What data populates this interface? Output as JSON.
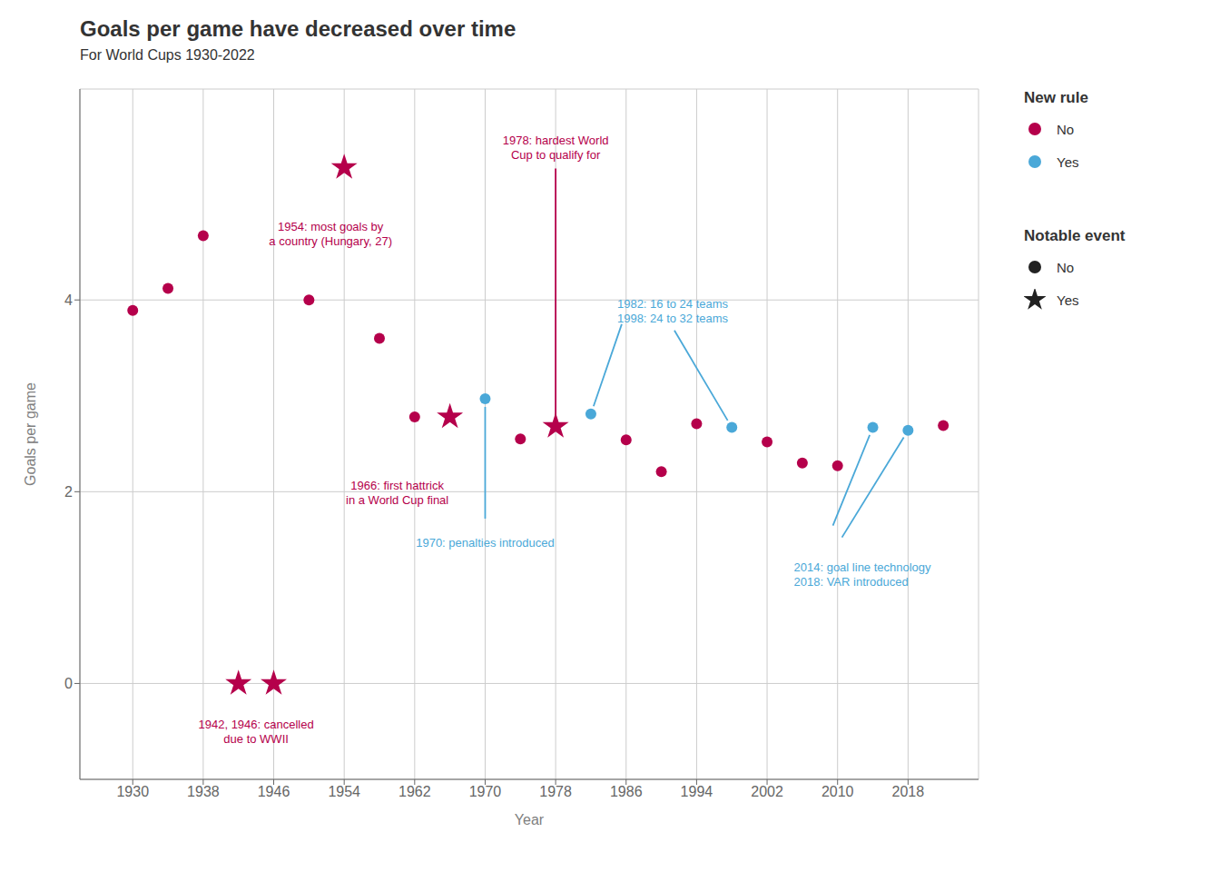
{
  "chart_data": {
    "type": "scatter",
    "title": "Goals per game have decreased over time",
    "subtitle": "For World Cups 1930-2022",
    "xlabel": "Year",
    "ylabel": "Goals per game",
    "x": [
      1930,
      1934,
      1938,
      1942,
      1946,
      1950,
      1954,
      1958,
      1962,
      1966,
      1970,
      1974,
      1978,
      1982,
      1986,
      1990,
      1994,
      1998,
      2002,
      2006,
      2010,
      2014,
      2018,
      2022
    ],
    "values": [
      3.89,
      4.12,
      4.67,
      0,
      0,
      4.0,
      5.38,
      3.6,
      2.78,
      2.78,
      2.97,
      2.55,
      2.68,
      2.81,
      2.54,
      2.21,
      2.71,
      2.67,
      2.52,
      2.3,
      2.27,
      2.67,
      2.64,
      2.69
    ],
    "colors": [
      "#b5004b",
      "#b5004b",
      "#b5004b",
      "#b5004b",
      "#b5004b",
      "#b5004b",
      "#b5004b",
      "#b5004b",
      "#b5004b",
      "#b5004b",
      "#4aa8d8",
      "#b5004b",
      "#b5004b",
      "#4aa8d8",
      "#b5004b",
      "#b5004b",
      "#b5004b",
      "#4aa8d8",
      "#b5004b",
      "#b5004b",
      "#b5004b",
      "#4aa8d8",
      "#4aa8d8",
      "#b5004b"
    ],
    "markers": [
      "circle",
      "circle",
      "circle",
      "star",
      "star",
      "circle",
      "star",
      "circle",
      "circle",
      "star",
      "circle",
      "circle",
      "star",
      "circle",
      "circle",
      "circle",
      "circle",
      "circle",
      "circle",
      "circle",
      "circle",
      "circle",
      "circle",
      "circle"
    ],
    "xlim": [
      1924,
      2026
    ],
    "ylim": [
      -1.0,
      6.2
    ],
    "xticks": [
      1930,
      1938,
      1946,
      1954,
      1962,
      1970,
      1978,
      1986,
      1994,
      2002,
      2010,
      2018
    ],
    "yticks": [
      0,
      2,
      4
    ],
    "grid": true,
    "legends": [
      {
        "title": "New rule",
        "entries": [
          {
            "name": "No",
            "color": "#b5004b",
            "marker": "circle"
          },
          {
            "name": "Yes",
            "color": "#4aa8d8",
            "marker": "circle"
          }
        ]
      },
      {
        "title": "Notable event",
        "entries": [
          {
            "name": "No",
            "color": "#222222",
            "marker": "circle"
          },
          {
            "name": "Yes",
            "color": "#222222",
            "marker": "star"
          }
        ]
      }
    ],
    "annotations": [
      {
        "text": "1954: most goals by\na country (Hungary, 27)",
        "color": "#b5004b",
        "points": [
          1954
        ]
      },
      {
        "text": "1978: hardest World\nCup to qualify for",
        "color": "#b5004b",
        "points": [
          1978
        ]
      },
      {
        "text": "1942, 1946: cancelled\ndue to WWII",
        "color": "#b5004b",
        "points": [
          1942,
          1946
        ]
      },
      {
        "text": "1966: first hattrick\nin a World Cup final",
        "color": "#b5004b",
        "points": [
          1966
        ]
      },
      {
        "text": "1970: penalties introduced",
        "color": "#4aa8d8",
        "points": [
          1970
        ]
      },
      {
        "text": "1982: 16 to 24 teams\n1998: 24 to 32 teams",
        "color": "#4aa8d8",
        "points": [
          1982,
          1998
        ]
      },
      {
        "text": "2014: goal line technology\n2018: VAR introduced",
        "color": "#4aa8d8",
        "points": [
          2014,
          2018
        ]
      }
    ]
  }
}
